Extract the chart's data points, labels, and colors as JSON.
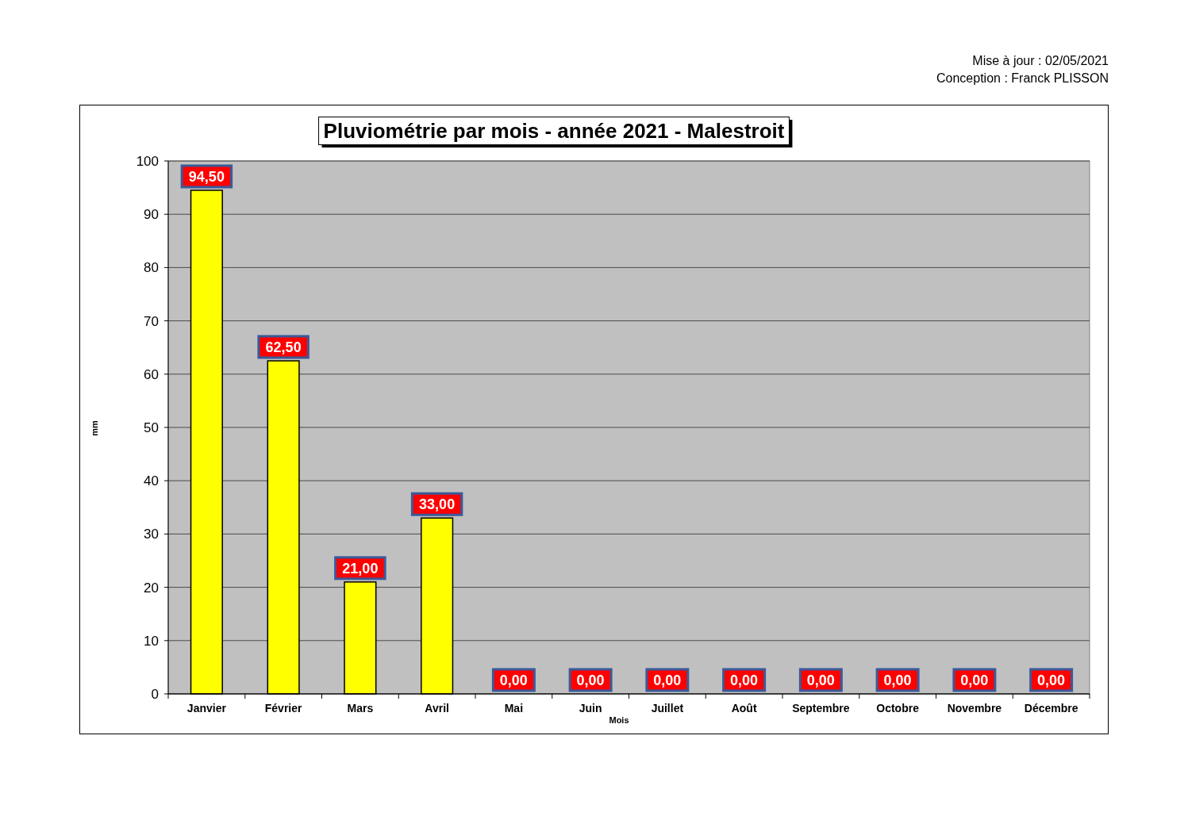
{
  "chart_data": {
    "type": "bar",
    "title": "Pluviométrie par mois - année 2021 - Malestroit",
    "xlabel": "Mois",
    "ylabel": "mm",
    "categories": [
      "Janvier",
      "Février",
      "Mars",
      "Avril",
      "Mai",
      "Juin",
      "Juillet",
      "Août",
      "Septembre",
      "Octobre",
      "Novembre",
      "Décembre"
    ],
    "values": [
      94.5,
      62.5,
      21,
      33,
      0,
      0,
      0,
      0,
      0,
      0,
      0,
      0
    ],
    "value_labels": [
      "94,50",
      "62,50",
      "21,00",
      "33,00",
      "0,00",
      "0,00",
      "0,00",
      "0,00",
      "0,00",
      "0,00",
      "0,00",
      "0,00"
    ],
    "color": "#ffff00",
    "ylim": [
      0,
      100
    ],
    "yticks": [
      0,
      10,
      20,
      30,
      40,
      50,
      60,
      70,
      80,
      90,
      100
    ],
    "grid": "y",
    "annotations": [
      "Mise à jour : 02/05/2021",
      "Conception : Franck PLISSON"
    ]
  }
}
